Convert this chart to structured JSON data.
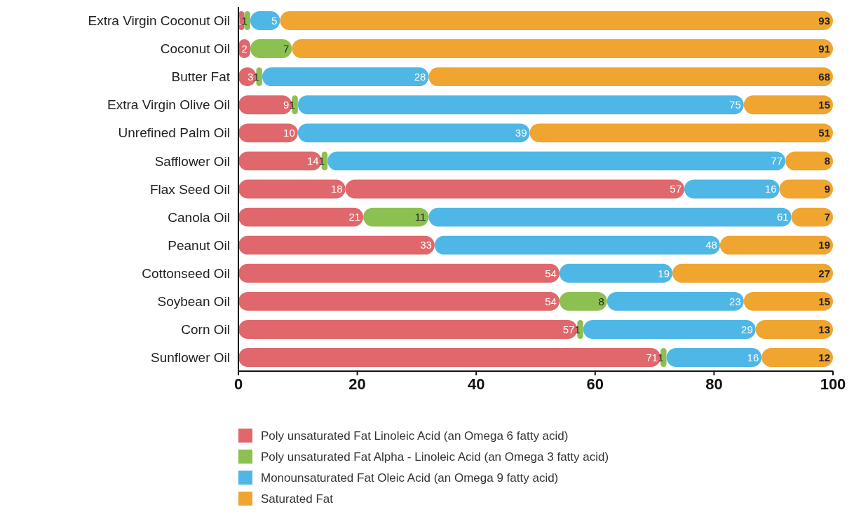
{
  "chart_data": {
    "type": "bar",
    "orientation": "horizontal",
    "stacked": true,
    "data_labels": true,
    "legend": "bottom",
    "grid": false,
    "categories": [
      "Extra Virgin Coconut Oil",
      "Coconut Oil",
      "Butter Fat",
      "Extra Virgin Olive Oil",
      "Unrefined Palm Oil",
      "Safflower Oil",
      "Flax Seed Oil",
      "Canola Oil",
      "Peanut Oil",
      "Cottonseed Oil",
      "Soybean Oil",
      "Corn Oil",
      "Sunflower Oil"
    ],
    "xlim": [
      0,
      100
    ],
    "xticks": [
      0,
      20,
      40,
      60,
      80,
      100
    ],
    "series": [
      {
        "name": "Poly unsaturated Fat Linoleic Acid (an Omega 6 fatty acid)",
        "color": "#e0686c",
        "values": [
          1,
          2,
          3,
          9,
          10,
          14,
          18,
          21,
          33,
          54,
          54,
          57,
          71
        ]
      },
      {
        "name": "Poly unsaturated Fat Alpha - Linoleic Acid (an Omega 3 fatty acid)",
        "color": "#8cc152",
        "colors": [
          "#8cc152",
          "#8cc152",
          "#8cc152",
          "#8cc152",
          null,
          "#8cc152",
          "#e0686c",
          "#8cc152",
          null,
          null,
          "#8cc152",
          "#8cc152",
          "#8cc152"
        ],
        "values": [
          1,
          7,
          1,
          1,
          null,
          1,
          57,
          11,
          null,
          null,
          8,
          1,
          1
        ]
      },
      {
        "name": "Monounsaturated Fat Oleic Acid (an Omega 9 fatty acid)",
        "color": "#4fb7e6",
        "values": [
          5,
          null,
          28,
          75,
          39,
          77,
          16,
          61,
          48,
          19,
          23,
          29,
          16
        ]
      },
      {
        "name": "Saturated Fat",
        "color": "#f0a530",
        "values": [
          93,
          91,
          68,
          15,
          51,
          8,
          9,
          7,
          19,
          27,
          15,
          13,
          12
        ]
      }
    ]
  }
}
